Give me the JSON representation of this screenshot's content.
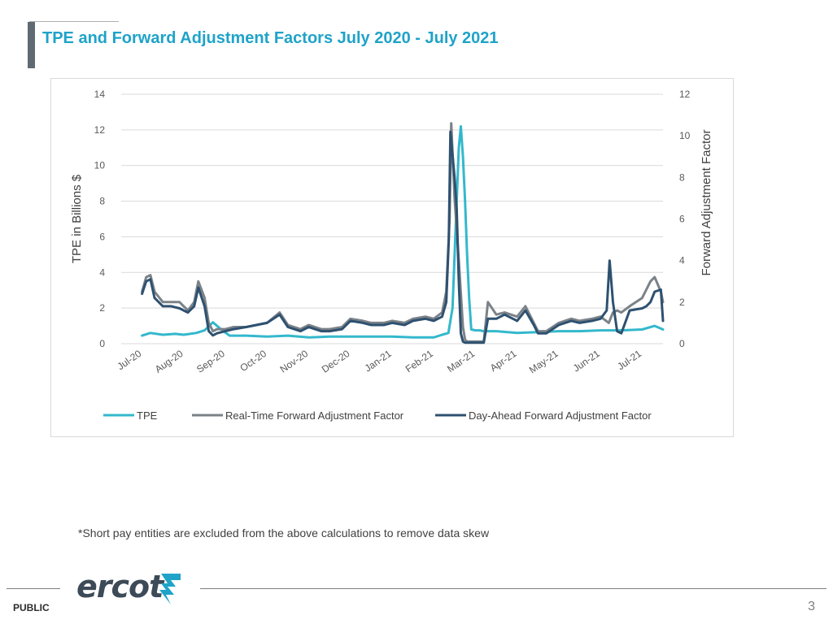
{
  "slide": {
    "title": "TPE and Forward Adjustment Factors July 2020 - July 2021",
    "footnote": "*Short pay entities are excluded from the above calculations to remove data skew",
    "classification": "PUBLIC",
    "page_number": "3",
    "logo_text": "ercot"
  },
  "colors": {
    "title": "#1fa3c9",
    "tpe": "#33b8cc",
    "rtfaf": "#7b8288",
    "dafaf": "#2e5170",
    "grid": "#d9d9d9"
  },
  "chart_data": {
    "type": "line",
    "x_categories": [
      "Jul-20",
      "Aug-20",
      "Sep-20",
      "Oct-20",
      "Nov-20",
      "Dec-20",
      "Jan-21",
      "Feb-21",
      "Mar-21",
      "Apr-21",
      "May-21",
      "Jun-21",
      "Jul-21"
    ],
    "y_left": {
      "label": "TPE in Billions $",
      "range": [
        0,
        14
      ],
      "ticks": [
        0,
        2,
        4,
        6,
        8,
        10,
        12,
        14
      ]
    },
    "y_right": {
      "label": "Forward Adjustment Factor",
      "range": [
        0,
        12
      ],
      "ticks": [
        0,
        2,
        4,
        6,
        8,
        10,
        12
      ]
    },
    "grid": true,
    "legend_position": "bottom",
    "series": [
      {
        "name": "TPE",
        "axis": "left",
        "x": [
          0,
          0.2,
          0.5,
          0.8,
          1.0,
          1.3,
          1.5,
          1.7,
          1.9,
          2.1,
          2.5,
          3.0,
          3.5,
          4.0,
          4.5,
          5.0,
          5.5,
          6.0,
          6.5,
          7.0,
          7.2,
          7.35,
          7.45,
          7.55,
          7.6,
          7.65,
          7.7,
          7.75,
          7.8,
          7.85,
          7.9,
          8.0,
          8.1,
          8.2,
          8.5,
          9.0,
          9.5,
          10.0,
          10.5,
          11.0,
          11.5,
          12.0,
          12.3,
          12.5
        ],
        "values": [
          0.45,
          0.6,
          0.5,
          0.55,
          0.5,
          0.6,
          0.75,
          1.2,
          0.8,
          0.45,
          0.45,
          0.4,
          0.45,
          0.35,
          0.4,
          0.4,
          0.4,
          0.4,
          0.35,
          0.35,
          0.5,
          0.6,
          2.0,
          8.0,
          11.0,
          12.2,
          10.5,
          8.0,
          5.0,
          2.5,
          0.8,
          0.75,
          0.75,
          0.7,
          0.7,
          0.6,
          0.65,
          0.7,
          0.7,
          0.75,
          0.75,
          0.8,
          1.0,
          0.8
        ]
      },
      {
        "name": "Real-Time Forward Adjustment Factor",
        "axis": "right",
        "x": [
          0,
          0.1,
          0.2,
          0.3,
          0.5,
          0.7,
          0.9,
          1.0,
          1.1,
          1.25,
          1.35,
          1.5,
          1.6,
          1.7,
          1.8,
          2.0,
          2.2,
          2.5,
          3.0,
          3.3,
          3.5,
          3.8,
          4.0,
          4.3,
          4.5,
          4.8,
          5.0,
          5.3,
          5.5,
          5.8,
          6.0,
          6.3,
          6.5,
          6.8,
          7.0,
          7.2,
          7.3,
          7.38,
          7.42,
          7.5,
          7.6,
          7.7,
          7.75,
          7.8,
          8.0,
          8.2,
          8.3,
          8.5,
          8.7,
          9.0,
          9.2,
          9.4,
          9.5,
          9.7,
          10.0,
          10.3,
          10.5,
          10.8,
          11.0,
          11.2,
          11.3,
          11.4,
          11.5,
          11.7,
          12.0,
          12.1,
          12.2,
          12.3,
          12.45,
          12.5
        ],
        "values": [
          2.5,
          3.2,
          3.3,
          2.5,
          2.0,
          2.0,
          2.0,
          1.8,
          1.6,
          2.0,
          3.0,
          2.2,
          1.0,
          0.6,
          0.7,
          0.7,
          0.8,
          0.8,
          1.0,
          1.5,
          0.9,
          0.7,
          0.9,
          0.7,
          0.7,
          0.8,
          1.2,
          1.1,
          1.0,
          1.0,
          1.1,
          1.0,
          1.2,
          1.3,
          1.2,
          1.5,
          2.5,
          6.0,
          10.6,
          7.0,
          4.0,
          0.8,
          0.2,
          0.1,
          0.1,
          0.1,
          2.0,
          1.4,
          1.5,
          1.3,
          1.8,
          1.0,
          0.6,
          0.6,
          1.0,
          1.2,
          1.1,
          1.2,
          1.3,
          1.0,
          1.5,
          1.6,
          1.5,
          1.8,
          2.2,
          2.6,
          3.0,
          3.2,
          2.5,
          2.0
        ]
      },
      {
        "name": "Day-Ahead Forward Adjustment Factor",
        "axis": "right",
        "x": [
          0,
          0.1,
          0.2,
          0.3,
          0.5,
          0.7,
          0.9,
          1.0,
          1.1,
          1.25,
          1.35,
          1.5,
          1.6,
          1.7,
          1.8,
          2.0,
          2.2,
          2.5,
          3.0,
          3.3,
          3.5,
          3.8,
          4.0,
          4.3,
          4.5,
          4.8,
          5.0,
          5.3,
          5.5,
          5.8,
          6.0,
          6.3,
          6.5,
          6.8,
          7.0,
          7.2,
          7.3,
          7.36,
          7.4,
          7.5,
          7.55,
          7.6,
          7.65,
          7.7,
          7.75,
          7.8,
          8.0,
          8.2,
          8.3,
          8.5,
          8.7,
          9.0,
          9.2,
          9.4,
          9.5,
          9.7,
          10.0,
          10.3,
          10.5,
          10.8,
          11.0,
          11.15,
          11.22,
          11.3,
          11.4,
          11.5,
          11.7,
          12.0,
          12.1,
          12.2,
          12.3,
          12.45,
          12.5
        ],
        "values": [
          2.4,
          3.0,
          3.1,
          2.2,
          1.8,
          1.8,
          1.7,
          1.6,
          1.5,
          1.8,
          2.7,
          1.8,
          0.6,
          0.4,
          0.5,
          0.6,
          0.7,
          0.8,
          1.0,
          1.4,
          0.8,
          0.6,
          0.8,
          0.6,
          0.6,
          0.7,
          1.1,
          1.0,
          0.9,
          0.9,
          1.0,
          0.9,
          1.1,
          1.2,
          1.1,
          1.3,
          2.0,
          5.0,
          10.2,
          8.0,
          6.5,
          3.0,
          0.5,
          0.1,
          0.05,
          0.05,
          0.05,
          0.05,
          1.2,
          1.2,
          1.4,
          1.1,
          1.6,
          0.9,
          0.5,
          0.5,
          0.9,
          1.1,
          1.0,
          1.1,
          1.2,
          1.6,
          4.0,
          2.0,
          0.6,
          0.5,
          1.6,
          1.7,
          1.8,
          2.0,
          2.5,
          2.6,
          1.1
        ]
      }
    ]
  }
}
